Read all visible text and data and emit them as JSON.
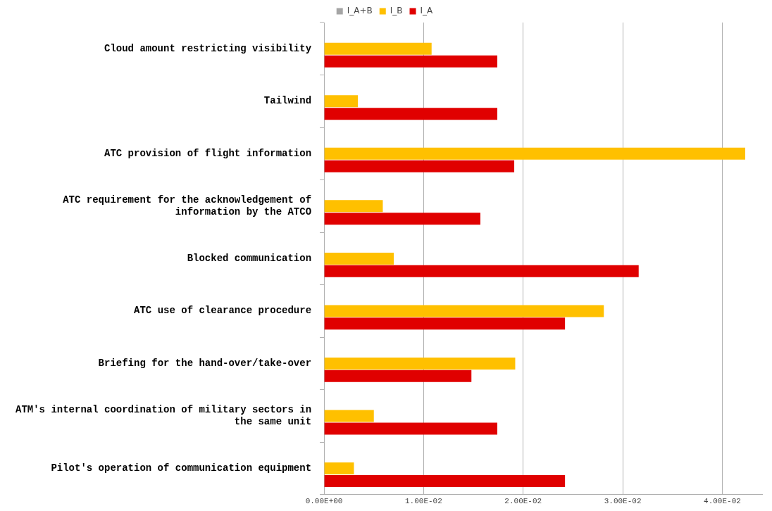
{
  "chart_data": {
    "type": "bar",
    "orientation": "horizontal",
    "categories": [
      "Cloud amount restricting visibility",
      "Tailwind",
      "ATC provision of flight information",
      "ATC requirement for the acknowledgement of\ninformation by the ATCO",
      "Blocked communication",
      "ATC use of clearance procedure",
      "Briefing for the hand-over/take-over",
      "ATM's internal coordination of military sectors in\nthe same unit",
      "Pilot's operation of communication equipment"
    ],
    "series": [
      {
        "name": "I_A+B",
        "color": "#a5a5a5",
        "values": [
          null,
          null,
          null,
          null,
          null,
          null,
          null,
          null,
          null
        ]
      },
      {
        "name": "I_B",
        "color": "#ffc000",
        "values": [
          0.0108,
          0.0034,
          0.0423,
          0.0059,
          0.007,
          0.0281,
          0.0192,
          0.005,
          0.003
        ]
      },
      {
        "name": "I_A",
        "color": "#e00000",
        "values": [
          0.0174,
          0.0174,
          0.0191,
          0.0157,
          0.0316,
          0.0242,
          0.0148,
          0.0174,
          0.0242
        ]
      }
    ],
    "xlim": [
      0,
      0.044
    ],
    "xticks": [
      {
        "value": 0,
        "label": "0.00E+00"
      },
      {
        "value": 0.01,
        "label": "1.00E-02"
      },
      {
        "value": 0.02,
        "label": "2.00E-02"
      },
      {
        "value": 0.03,
        "label": "3.00E-02"
      },
      {
        "value": 0.04,
        "label": "4.00E-02"
      }
    ],
    "grid": "x",
    "legend": "top"
  }
}
